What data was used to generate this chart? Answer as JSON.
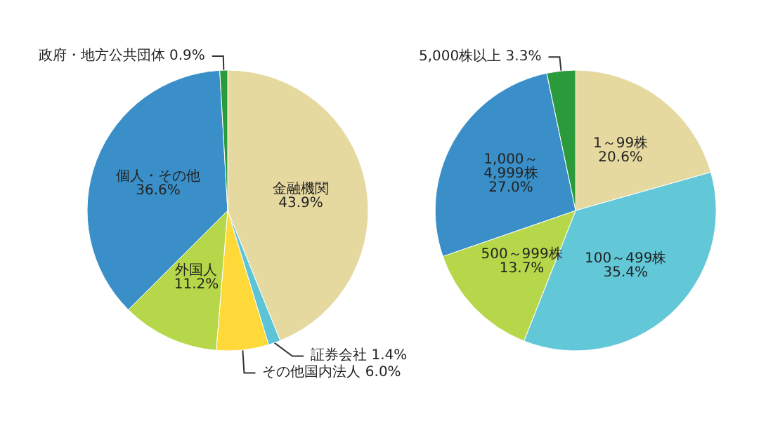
{
  "chart_data": [
    {
      "type": "pie",
      "categories": [
        "金融機関",
        "証券会社",
        "その他国内法人",
        "外国人",
        "個人・その他",
        "政府・地方公共団体"
      ],
      "values": [
        43.9,
        1.4,
        6.0,
        11.2,
        36.6,
        0.9
      ],
      "colors": [
        "#e6d9a0",
        "#5cc4d6",
        "#ffd93a",
        "#b6d74a",
        "#3a8fc8",
        "#2a9a3a"
      ],
      "value_labels": [
        "43.9%",
        "1.4%",
        "6.0%",
        "11.2%",
        "36.6%",
        "0.9%"
      ]
    },
    {
      "type": "pie",
      "categories": [
        "1～99株",
        "100～499株",
        "500～999株",
        "1,000～\n4,999株",
        "5,000株以上"
      ],
      "values": [
        20.6,
        35.4,
        13.7,
        27.0,
        3.3
      ],
      "colors": [
        "#e6d9a0",
        "#62c8d8",
        "#b6d74a",
        "#3a8fc8",
        "#2a9a3a"
      ],
      "value_labels": [
        "20.6%",
        "35.4%",
        "13.7%",
        "27.0%",
        "3.3%"
      ]
    }
  ]
}
